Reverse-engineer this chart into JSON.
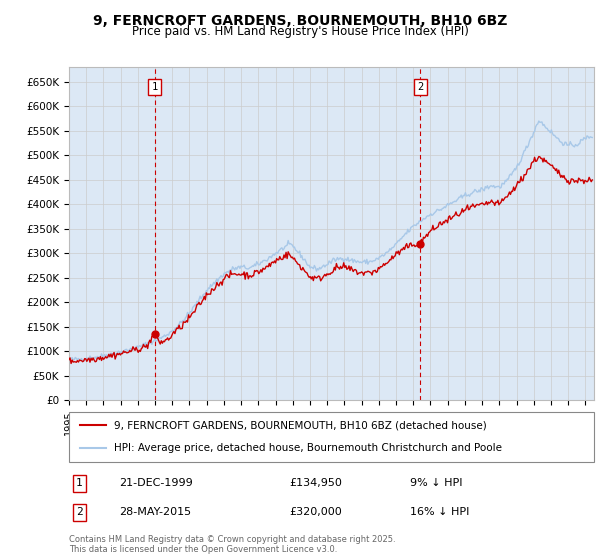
{
  "title": "9, FERNCROFT GARDENS, BOURNEMOUTH, BH10 6BZ",
  "subtitle": "Price paid vs. HM Land Registry's House Price Index (HPI)",
  "ytick_labels": [
    "£0",
    "£50K",
    "£100K",
    "£150K",
    "£200K",
    "£250K",
    "£300K",
    "£350K",
    "£400K",
    "£450K",
    "£500K",
    "£550K",
    "£600K",
    "£650K"
  ],
  "yticks": [
    0,
    50000,
    100000,
    150000,
    200000,
    250000,
    300000,
    350000,
    400000,
    450000,
    500000,
    550000,
    600000,
    650000
  ],
  "ylim": [
    0,
    680000
  ],
  "xlim_start": 1995.0,
  "xlim_end": 2025.5,
  "sale1_date": 1999.97,
  "sale1_price": 134950,
  "sale2_date": 2015.41,
  "sale2_price": 320000,
  "legend_line1": "9, FERNCROFT GARDENS, BOURNEMOUTH, BH10 6BZ (detached house)",
  "legend_line2": "HPI: Average price, detached house, Bournemouth Christchurch and Poole",
  "sale1_date_str": "21-DEC-1999",
  "sale1_price_str": "£134,950",
  "sale1_pct_str": "9% ↓ HPI",
  "sale2_date_str": "28-MAY-2015",
  "sale2_price_str": "£320,000",
  "sale2_pct_str": "16% ↓ HPI",
  "footer": "Contains HM Land Registry data © Crown copyright and database right 2025.\nThis data is licensed under the Open Government Licence v3.0.",
  "hpi_color": "#a8c8e8",
  "price_color": "#cc0000",
  "grid_color": "#cccccc",
  "bg_color": "#dce8f5",
  "vline_color": "#cc0000",
  "box_color": "#cc0000",
  "title_fontsize": 10,
  "subtitle_fontsize": 8.5
}
